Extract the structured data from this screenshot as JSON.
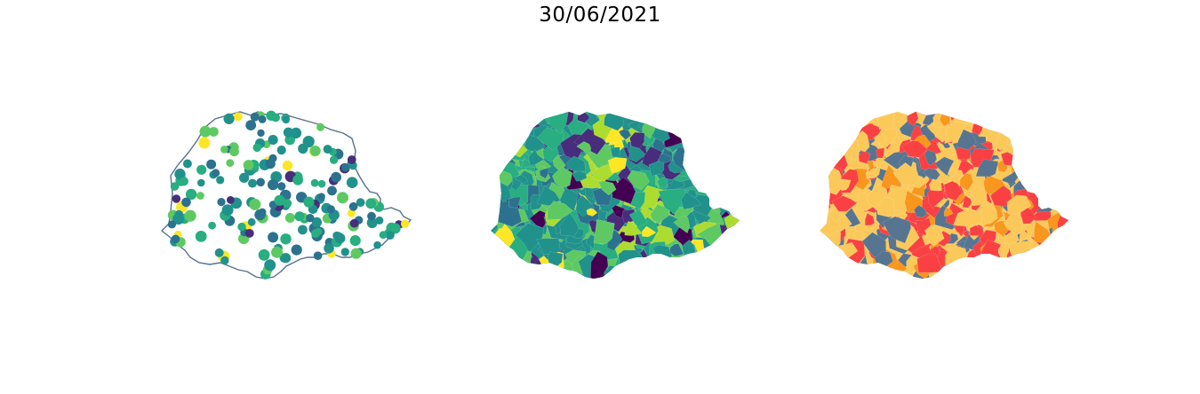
{
  "title": "30/06/2021",
  "palettes": {
    "viridis": [
      "#440154",
      "#472d7b",
      "#3b528b",
      "#2c728e",
      "#21918c",
      "#28ae80",
      "#5ec962",
      "#addc30",
      "#fde725"
    ],
    "categorical": [
      "#fbc95a",
      "#f94144",
      "#577590",
      "#f8961e"
    ]
  },
  "outline_color": "#57708c",
  "maps": [
    {
      "name": "points-map",
      "style": "proportional points over state outline"
    },
    {
      "name": "choropleth-map",
      "style": "continuous choropleth (viridis)"
    },
    {
      "name": "categorical-map",
      "style": "categorical choropleth"
    }
  ]
}
